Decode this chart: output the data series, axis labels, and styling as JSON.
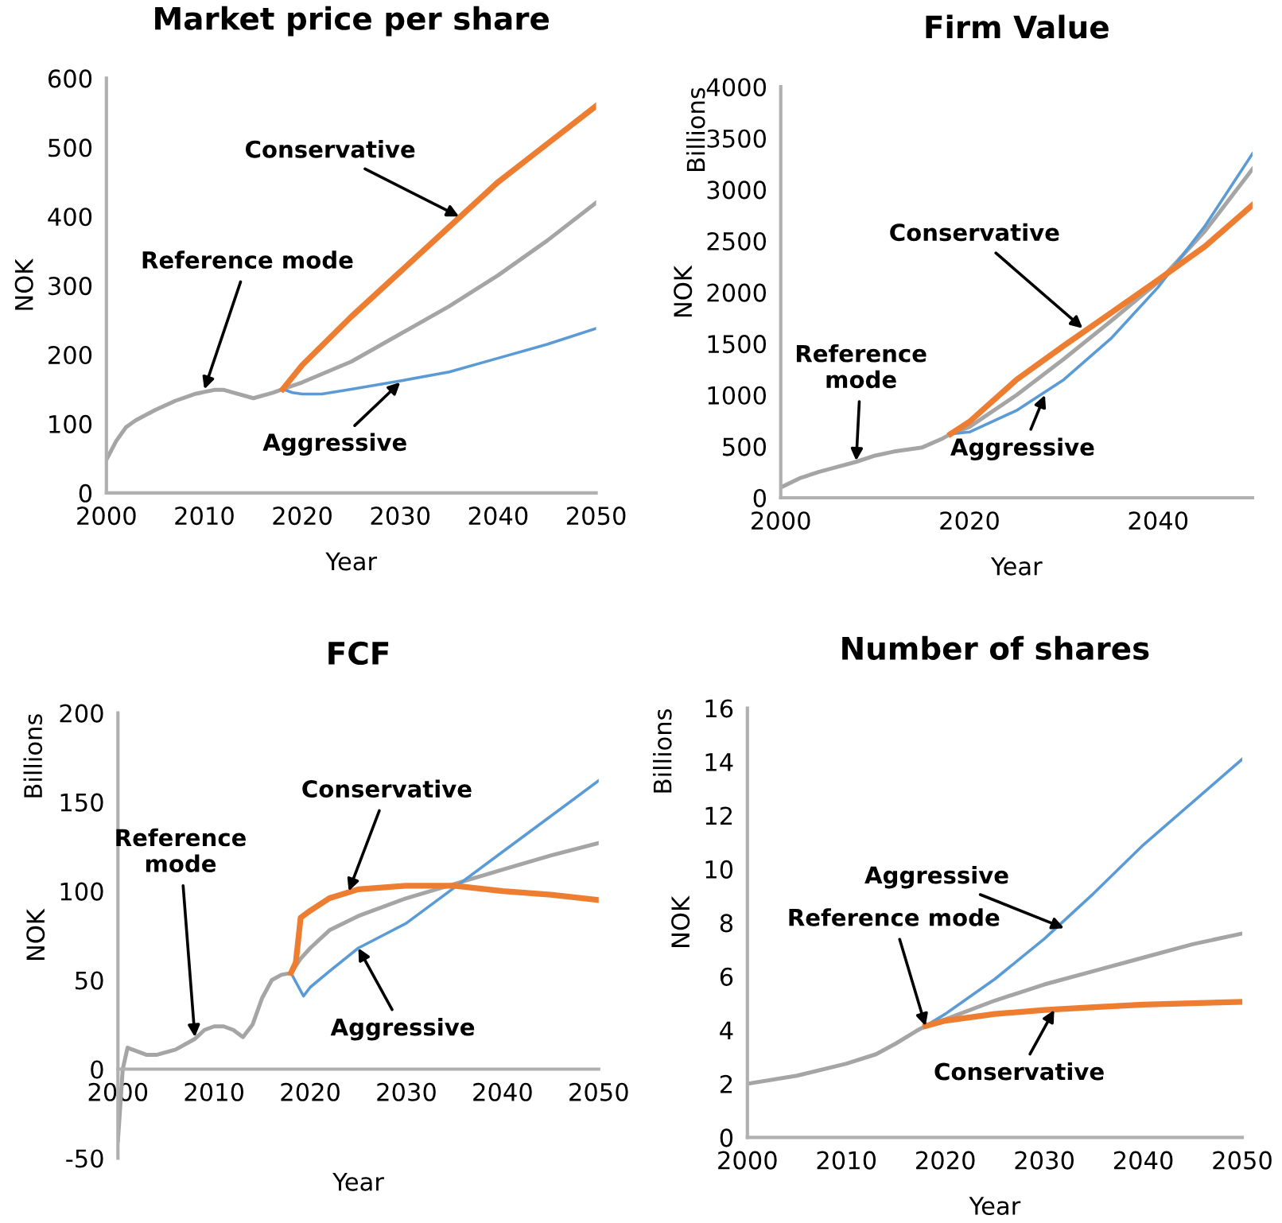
{
  "chart_data": [
    {
      "type": "line",
      "title": "Market price per share",
      "xlabel": "Year",
      "ylabel": "NOK",
      "xlim": [
        2000,
        2050
      ],
      "xticks": [
        2000,
        2010,
        2020,
        2030,
        2040,
        2050
      ],
      "ylim": [
        0,
        600
      ],
      "yticks": [
        0,
        100,
        200,
        300,
        400,
        500,
        600
      ],
      "grid": false,
      "legend": false,
      "series": [
        {
          "color": "#a5a5a5",
          "x": [
            2000,
            2001,
            2002,
            2003,
            2005,
            2007,
            2009,
            2011,
            2012,
            2013,
            2015,
            2017,
            2018,
            2020,
            2025,
            2030,
            2035,
            2040,
            2045,
            2050
          ],
          "values": [
            48,
            75,
            95,
            105,
            120,
            133,
            143,
            149,
            149,
            145,
            137,
            145,
            150,
            160,
            190,
            230,
            270,
            315,
            365,
            420
          ]
        },
        {
          "color": "#5b9bd5",
          "x": [
            2018,
            2019,
            2020,
            2022,
            2025,
            2030,
            2035,
            2040,
            2045,
            2050
          ],
          "values": [
            150,
            145,
            143,
            143,
            150,
            162,
            175,
            195,
            215,
            238
          ]
        },
        {
          "color": "#ed7d31",
          "x": [
            2018,
            2020,
            2025,
            2030,
            2035,
            2040,
            2045,
            2050
          ],
          "values": [
            150,
            185,
            255,
            320,
            385,
            450,
            505,
            560
          ]
        }
      ],
      "annotations": [
        {
          "text": "Conservative",
          "x": 2036,
          "y": 400
        },
        {
          "text": "Reference mode",
          "x": 2010,
          "y": 150
        },
        {
          "text": "Aggressive",
          "x": 2030,
          "y": 160
        }
      ]
    },
    {
      "type": "line",
      "title": "Firm Value",
      "xlabel": "Year",
      "ylabel": "NOK",
      "xlim": [
        2000,
        2050
      ],
      "xticks": [
        2000,
        2020,
        2040
      ],
      "ylim": [
        0,
        4000
      ],
      "yticks": [
        0,
        500,
        1000,
        1500,
        2000,
        2500,
        3000,
        3500,
        4000
      ],
      "grid": false,
      "legend": false,
      "series": [
        {
          "color": "#a5a5a5",
          "x": [
            2000,
            2002,
            2004,
            2006,
            2008,
            2010,
            2012,
            2015,
            2017,
            2018,
            2020,
            2025,
            2030,
            2035,
            2040,
            2045,
            2050
          ],
          "values": [
            100,
            190,
            250,
            300,
            350,
            410,
            450,
            490,
            570,
            620,
            690,
            1000,
            1350,
            1720,
            2100,
            2600,
            3200
          ]
        },
        {
          "color": "#5b9bd5",
          "x": [
            2018,
            2020,
            2025,
            2030,
            2035,
            2040,
            2045,
            2050
          ],
          "values": [
            620,
            640,
            850,
            1150,
            1550,
            2050,
            2650,
            3350
          ]
        },
        {
          "color": "#ed7d31",
          "x": [
            2018,
            2020,
            2025,
            2030,
            2035,
            2040,
            2045,
            2050
          ],
          "values": [
            620,
            740,
            1150,
            1480,
            1800,
            2120,
            2450,
            2850
          ]
        }
      ],
      "annotations": [
        "Billions",
        {
          "text": "Conservative",
          "x": 2032,
          "y": 1650
        },
        {
          "text": "Reference\nmode",
          "x": 2008,
          "y": 360
        },
        {
          "text": "Aggressive",
          "x": 2028,
          "y": 1000
        }
      ]
    },
    {
      "type": "line",
      "title": "FCF",
      "xlabel": "Year",
      "ylabel": "NOK",
      "xlim": [
        2000,
        2050
      ],
      "xticks": [
        2000,
        2010,
        2020,
        2030,
        2040,
        2050
      ],
      "ylim": [
        -50,
        200
      ],
      "yticks": [
        -50,
        0,
        50,
        100,
        150,
        200
      ],
      "grid": false,
      "legend": false,
      "series": [
        {
          "color": "#a5a5a5",
          "x": [
            2000,
            2000.5,
            2001,
            2002,
            2003,
            2004,
            2006,
            2008,
            2009,
            2010,
            2011,
            2012,
            2013,
            2014,
            2015,
            2016,
            2017,
            2018,
            2019,
            2020,
            2022,
            2025,
            2030,
            2035,
            2040,
            2045,
            2050
          ],
          "values": [
            -40,
            0,
            12,
            10,
            8,
            8,
            11,
            17,
            22,
            24,
            24,
            22,
            18,
            25,
            40,
            50,
            53,
            54,
            62,
            68,
            78,
            86,
            96,
            104,
            112,
            120,
            127
          ]
        },
        {
          "color": "#5b9bd5",
          "x": [
            2018,
            2019,
            2019.3,
            2020,
            2022,
            2025,
            2030,
            2035,
            2040,
            2045,
            2050
          ],
          "values": [
            54,
            44,
            41,
            46,
            55,
            68,
            82,
            102,
            122,
            142,
            162
          ]
        },
        {
          "color": "#ed7d31",
          "x": [
            2018,
            2018.5,
            2019,
            2020,
            2022,
            2025,
            2030,
            2035,
            2040,
            2045,
            2050
          ],
          "values": [
            54,
            60,
            85,
            89,
            96,
            101,
            103,
            103,
            100,
            98,
            95
          ]
        }
      ],
      "annotations": [
        "Billions",
        {
          "text": "Conservative",
          "x": 2024,
          "y": 100
        },
        {
          "text": "Reference\nmode",
          "x": 2008,
          "y": 18
        },
        {
          "text": "Aggressive",
          "x": 2025,
          "y": 68
        }
      ]
    },
    {
      "type": "line",
      "title": "Number of shares",
      "xlabel": "Year",
      "ylabel": "NOK",
      "xlim": [
        2000,
        2050
      ],
      "xticks": [
        2000,
        2010,
        2020,
        2030,
        2040,
        2050
      ],
      "ylim": [
        0,
        16
      ],
      "yticks": [
        0,
        2,
        4,
        6,
        8,
        10,
        12,
        14,
        16
      ],
      "grid": false,
      "legend": false,
      "series": [
        {
          "color": "#a5a5a5",
          "x": [
            2000,
            2005,
            2010,
            2013,
            2015,
            2017,
            2018,
            2020,
            2025,
            2030,
            2035,
            2040,
            2045,
            2050
          ],
          "values": [
            2.0,
            2.3,
            2.75,
            3.1,
            3.5,
            3.95,
            4.15,
            4.4,
            5.1,
            5.7,
            6.2,
            6.7,
            7.2,
            7.6
          ]
        },
        {
          "color": "#5b9bd5",
          "x": [
            2018,
            2020,
            2025,
            2030,
            2035,
            2040,
            2045,
            2050
          ],
          "values": [
            4.15,
            4.6,
            5.9,
            7.4,
            9.1,
            10.9,
            12.5,
            14.1
          ]
        },
        {
          "color": "#ed7d31",
          "x": [
            2018,
            2020,
            2025,
            2030,
            2035,
            2040,
            2045,
            2050
          ],
          "values": [
            4.15,
            4.35,
            4.6,
            4.75,
            4.85,
            4.95,
            5.0,
            5.05
          ]
        }
      ],
      "annotations": [
        "Billions",
        {
          "text": "Aggressive",
          "x": 2032,
          "y": 7.8
        },
        {
          "text": "Reference mode",
          "x": 2018,
          "y": 4.15
        },
        {
          "text": "Conservative",
          "x": 2031,
          "y": 4.75
        }
      ]
    }
  ]
}
